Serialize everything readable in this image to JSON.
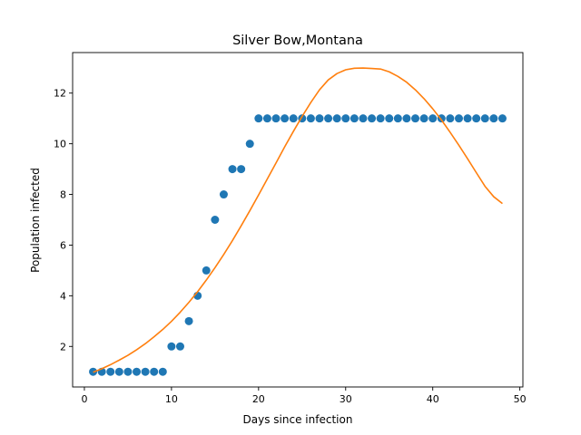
{
  "chart_data": {
    "type": "scatter",
    "title": "Silver Bow,Montana",
    "xlabel": "Days since infection",
    "ylabel": "Population infected",
    "xlim": [
      -1.35,
      50.35
    ],
    "ylim": [
      0.4,
      13.6
    ],
    "xticks": [
      0,
      10,
      20,
      30,
      40,
      50
    ],
    "yticks": [
      2,
      4,
      6,
      8,
      10,
      12
    ],
    "grid": false,
    "legend": "none",
    "colors": {
      "points": "#1f77b4",
      "fit": "#ff7f0e"
    },
    "series": [
      {
        "kind": "points",
        "x": [
          1,
          2,
          3,
          4,
          5,
          6,
          7,
          8,
          9,
          10,
          11,
          12,
          13,
          14,
          15,
          16,
          17,
          18,
          19,
          20,
          21,
          22,
          23,
          24,
          25,
          26,
          27,
          28,
          29,
          30,
          31,
          32,
          33,
          34,
          35,
          36,
          37,
          38,
          39,
          40,
          41,
          42,
          43,
          44,
          45,
          46,
          47,
          48
        ],
        "y": [
          1,
          1,
          1,
          1,
          1,
          1,
          1,
          1,
          1,
          2,
          2,
          3,
          4,
          5,
          7,
          8,
          9,
          9,
          10,
          11,
          11,
          11,
          11,
          11,
          11,
          11,
          11,
          11,
          11,
          11,
          11,
          11,
          11,
          11,
          11,
          11,
          11,
          11,
          11,
          11,
          11,
          11,
          11,
          11,
          11,
          11,
          11,
          11
        ]
      },
      {
        "kind": "line",
        "x": [
          1,
          2,
          3,
          4,
          5,
          6,
          7,
          8,
          9,
          10,
          11,
          12,
          13,
          14,
          15,
          16,
          17,
          18,
          19,
          20,
          21,
          22,
          23,
          24,
          25,
          26,
          27,
          28,
          29,
          30,
          31,
          32,
          33,
          34,
          35,
          36,
          37,
          38,
          39,
          40,
          41,
          42,
          43,
          44,
          45,
          46,
          47,
          48
        ],
        "y": [
          0.98,
          1.12,
          1.28,
          1.46,
          1.65,
          1.87,
          2.11,
          2.38,
          2.67,
          2.99,
          3.35,
          3.74,
          4.16,
          4.62,
          5.11,
          5.63,
          6.18,
          6.76,
          7.36,
          7.98,
          8.61,
          9.24,
          9.88,
          10.49,
          11.08,
          11.63,
          12.13,
          12.52,
          12.77,
          12.92,
          12.98,
          12.99,
          12.97,
          12.95,
          12.84,
          12.66,
          12.43,
          12.13,
          11.78,
          11.38,
          10.94,
          10.45,
          9.94,
          9.41,
          8.86,
          8.32,
          7.91,
          7.64
        ]
      }
    ]
  }
}
